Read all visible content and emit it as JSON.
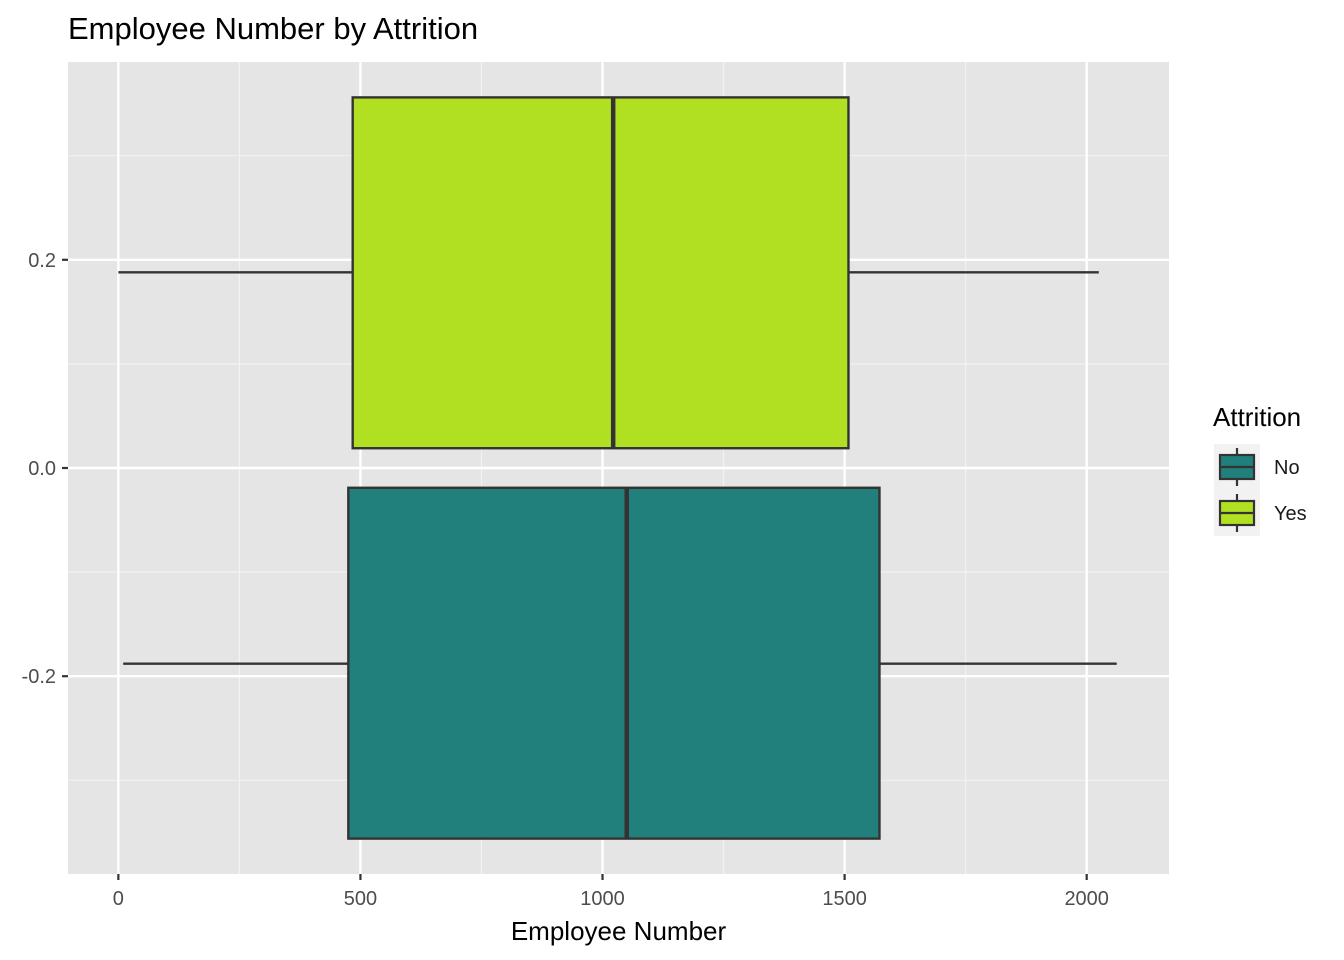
{
  "chart_data": {
    "type": "boxplot",
    "orientation": "horizontal",
    "title": "Employee Number by Attrition",
    "xlabel": "Employee Number",
    "ylabel": "",
    "xlim": [
      -104,
      2170
    ],
    "ylim": [
      -0.39,
      0.39
    ],
    "x_ticks": [
      0,
      500,
      1000,
      1500,
      2000
    ],
    "x_tick_labels": [
      "0",
      "500",
      "1000",
      "1500",
      "2000"
    ],
    "y_ticks": [
      0.2,
      0.0,
      -0.2
    ],
    "y_tick_labels": [
      "0.2",
      "0.0",
      "-0.2"
    ],
    "grid": true,
    "legend": {
      "title": "Attrition",
      "position": "right",
      "entries": [
        "No",
        "Yes"
      ]
    },
    "series": [
      {
        "name": "No",
        "color": "#21807b",
        "min": 10,
        "q1": 475,
        "median": 1050,
        "q3": 1572,
        "max": 2062,
        "center": -0.188,
        "box_bottom": -0.356,
        "box_top": -0.019
      },
      {
        "name": "Yes",
        "color": "#b1df21",
        "min": 0,
        "q1": 484,
        "median": 1022,
        "q3": 1508,
        "max": 2025,
        "center": 0.188,
        "box_bottom": 0.019,
        "box_top": 0.356
      }
    ]
  }
}
